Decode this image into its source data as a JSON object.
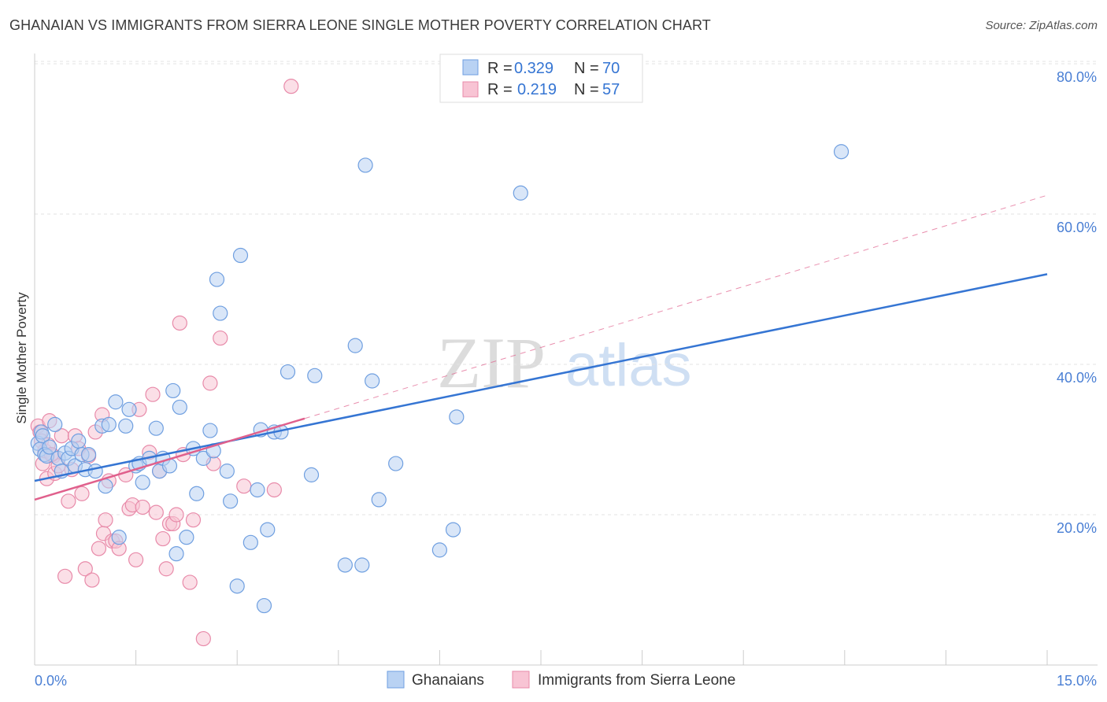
{
  "header": {
    "title": "GHANAIAN VS IMMIGRANTS FROM SIERRA LEONE SINGLE MOTHER POVERTY CORRELATION CHART",
    "source": "Source: ZipAtlas.com"
  },
  "watermark": {
    "zip": "ZIP",
    "atlas": "atlas"
  },
  "colors": {
    "blue_fill": "#b9d2f3",
    "blue_stroke": "#6f9fe0",
    "blue_line": "#3575d3",
    "pink_fill": "#f8c4d4",
    "pink_stroke": "#e88aa9",
    "pink_line": "#e0608c",
    "tick_text": "#4a7fd4",
    "grid": "#e3e3e3"
  },
  "legend": {
    "rows": [
      {
        "r_label": "R =",
        "r_value": "0.329",
        "n_label": "N =",
        "n_value": "70"
      },
      {
        "r_label": "R =",
        "r_value": "0.219",
        "n_label": "N =",
        "n_value": "57"
      }
    ]
  },
  "chart_data": {
    "type": "scatter",
    "title": "GHANAIAN VS IMMIGRANTS FROM SIERRA LEONE SINGLE MOTHER POVERTY CORRELATION CHART",
    "xlabel": "",
    "ylabel": "Single Mother Poverty",
    "xlim": [
      0,
      15
    ],
    "ylim": [
      0,
      80
    ],
    "x_tick_labels": [
      "0.0%",
      "15.0%"
    ],
    "y_ticks": [
      20,
      40,
      60,
      80
    ],
    "y_tick_labels": [
      "20.0%",
      "40.0%",
      "60.0%",
      "80.0%"
    ],
    "grid": true,
    "series": [
      {
        "name": "Ghanaians",
        "r": 0.329,
        "n": 70,
        "trend": {
          "x": [
            0,
            15
          ],
          "y": [
            24.5,
            52.0
          ],
          "style": "solid"
        },
        "points": [
          [
            0.05,
            29.5
          ],
          [
            0.08,
            28.7
          ],
          [
            0.1,
            31.0
          ],
          [
            0.12,
            30.5
          ],
          [
            0.15,
            28.0
          ],
          [
            0.18,
            27.8
          ],
          [
            0.22,
            29.0
          ],
          [
            0.3,
            32.0
          ],
          [
            0.35,
            27.5
          ],
          [
            0.4,
            25.8
          ],
          [
            0.45,
            28.2
          ],
          [
            0.5,
            27.5
          ],
          [
            0.55,
            28.8
          ],
          [
            0.6,
            26.5
          ],
          [
            0.65,
            29.8
          ],
          [
            0.7,
            28.0
          ],
          [
            0.75,
            26.0
          ],
          [
            0.8,
            28.0
          ],
          [
            0.9,
            25.8
          ],
          [
            1.0,
            31.8
          ],
          [
            1.05,
            23.8
          ],
          [
            1.1,
            32.0
          ],
          [
            1.2,
            35.0
          ],
          [
            1.25,
            17.0
          ],
          [
            1.35,
            31.8
          ],
          [
            1.4,
            34.0
          ],
          [
            1.5,
            26.5
          ],
          [
            1.55,
            26.8
          ],
          [
            1.6,
            24.3
          ],
          [
            1.7,
            27.5
          ],
          [
            1.8,
            31.5
          ],
          [
            1.85,
            25.8
          ],
          [
            1.9,
            27.5
          ],
          [
            2.0,
            26.5
          ],
          [
            2.05,
            36.5
          ],
          [
            2.1,
            14.8
          ],
          [
            2.15,
            34.3
          ],
          [
            2.25,
            17.0
          ],
          [
            2.35,
            28.8
          ],
          [
            2.4,
            22.8
          ],
          [
            2.5,
            27.5
          ],
          [
            2.6,
            31.2
          ],
          [
            2.65,
            28.5
          ],
          [
            2.7,
            51.3
          ],
          [
            2.75,
            46.8
          ],
          [
            2.85,
            25.8
          ],
          [
            2.9,
            21.8
          ],
          [
            3.0,
            10.5
          ],
          [
            3.05,
            54.5
          ],
          [
            3.2,
            16.3
          ],
          [
            3.3,
            23.3
          ],
          [
            3.35,
            31.3
          ],
          [
            3.4,
            7.9
          ],
          [
            3.45,
            18.0
          ],
          [
            3.55,
            31.0
          ],
          [
            3.65,
            31.0
          ],
          [
            3.75,
            39.0
          ],
          [
            4.1,
            25.3
          ],
          [
            4.15,
            38.5
          ],
          [
            4.6,
            13.3
          ],
          [
            4.75,
            42.5
          ],
          [
            4.85,
            13.3
          ],
          [
            4.9,
            66.5
          ],
          [
            5.0,
            37.8
          ],
          [
            5.1,
            22.0
          ],
          [
            5.35,
            26.8
          ],
          [
            6.0,
            15.3
          ],
          [
            6.2,
            18.0
          ],
          [
            6.25,
            33.0
          ],
          [
            7.2,
            62.8
          ],
          [
            11.95,
            68.3
          ]
        ]
      },
      {
        "name": "Immigrants from Sierra Leone",
        "r": 0.219,
        "n": 57,
        "trend": {
          "x": [
            0,
            4.0
          ],
          "y": [
            22.0,
            32.8
          ],
          "style": "solid"
        },
        "trend_extended": {
          "x": [
            4.0,
            15
          ],
          "y": [
            32.8,
            62.5
          ],
          "style": "dashed"
        },
        "points": [
          [
            0.05,
            31.8
          ],
          [
            0.08,
            31.0
          ],
          [
            0.1,
            29.8
          ],
          [
            0.12,
            26.8
          ],
          [
            0.15,
            28.5
          ],
          [
            0.18,
            24.8
          ],
          [
            0.2,
            29.3
          ],
          [
            0.22,
            32.5
          ],
          [
            0.28,
            27.8
          ],
          [
            0.3,
            25.5
          ],
          [
            0.35,
            26.5
          ],
          [
            0.4,
            30.5
          ],
          [
            0.45,
            11.8
          ],
          [
            0.5,
            21.8
          ],
          [
            0.55,
            26.0
          ],
          [
            0.6,
            30.5
          ],
          [
            0.65,
            28.8
          ],
          [
            0.7,
            22.8
          ],
          [
            0.75,
            12.8
          ],
          [
            0.8,
            27.8
          ],
          [
            0.85,
            11.3
          ],
          [
            0.9,
            31.0
          ],
          [
            0.95,
            15.5
          ],
          [
            1.0,
            33.3
          ],
          [
            1.02,
            17.5
          ],
          [
            1.05,
            19.3
          ],
          [
            1.1,
            24.5
          ],
          [
            1.15,
            16.5
          ],
          [
            1.2,
            16.5
          ],
          [
            1.25,
            15.5
          ],
          [
            1.35,
            25.3
          ],
          [
            1.4,
            20.8
          ],
          [
            1.45,
            21.3
          ],
          [
            1.5,
            14.0
          ],
          [
            1.55,
            34.0
          ],
          [
            1.6,
            21.0
          ],
          [
            1.7,
            28.3
          ],
          [
            1.75,
            36.0
          ],
          [
            1.8,
            20.3
          ],
          [
            1.85,
            25.8
          ],
          [
            1.9,
            16.8
          ],
          [
            1.95,
            12.8
          ],
          [
            2.0,
            18.8
          ],
          [
            2.05,
            18.8
          ],
          [
            2.1,
            20.0
          ],
          [
            2.15,
            45.5
          ],
          [
            2.2,
            28.0
          ],
          [
            2.3,
            11.0
          ],
          [
            2.35,
            19.3
          ],
          [
            2.5,
            3.5
          ],
          [
            2.6,
            37.5
          ],
          [
            2.65,
            26.8
          ],
          [
            2.75,
            43.5
          ],
          [
            3.1,
            23.8
          ],
          [
            3.55,
            23.3
          ],
          [
            3.8,
            77.0
          ],
          [
            0.25,
            28.0
          ]
        ]
      }
    ]
  },
  "bottom_legend": {
    "items": [
      {
        "label": "Ghanaians"
      },
      {
        "label": "Immigrants from Sierra Leone"
      }
    ]
  }
}
